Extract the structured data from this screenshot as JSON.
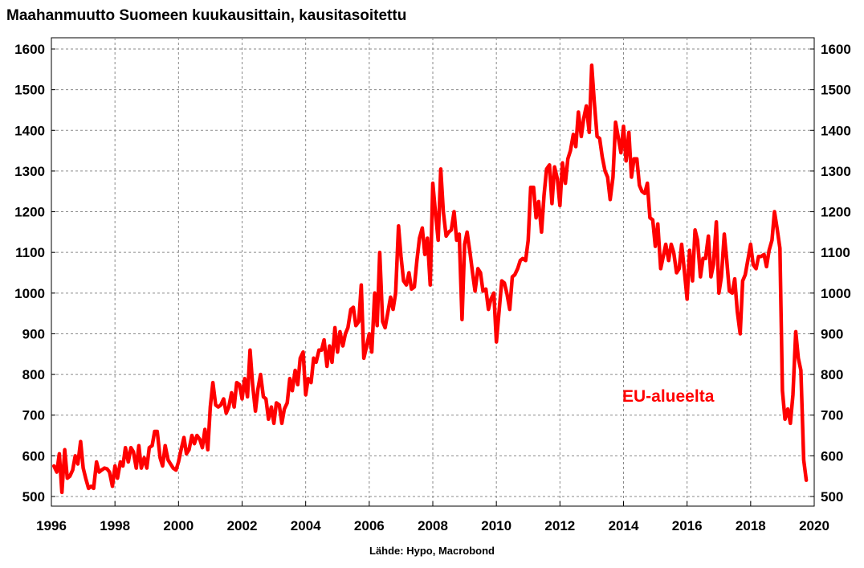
{
  "chart_data": {
    "type": "line",
    "title": "Maahanmuutto Suomeen kuukausittain, kausitasoitettu",
    "source": "Lähde: Hypo, Macrobond",
    "xlabel": "",
    "ylabel": "",
    "xlim": [
      1996,
      2020
    ],
    "ylim": [
      500,
      1600
    ],
    "x_ticks": [
      "1996",
      "1998",
      "2000",
      "2002",
      "2004",
      "2006",
      "2008",
      "2010",
      "2012",
      "2014",
      "2016",
      "2018",
      "2020"
    ],
    "y_ticks": [
      "500",
      "600",
      "700",
      "800",
      "900",
      "1000",
      "1100",
      "1200",
      "1300",
      "1400",
      "1500",
      "1600"
    ],
    "y_axis_both_sides": true,
    "grid": true,
    "series": [
      {
        "name": "EU-alueelta",
        "color": "#ff0000",
        "points": [
          [
            1996.08,
            575
          ],
          [
            1996.17,
            560
          ],
          [
            1996.25,
            605
          ],
          [
            1996.33,
            510
          ],
          [
            1996.42,
            615
          ],
          [
            1996.5,
            545
          ],
          [
            1996.58,
            550
          ],
          [
            1996.67,
            565
          ],
          [
            1996.75,
            600
          ],
          [
            1996.83,
            580
          ],
          [
            1996.92,
            635
          ],
          [
            1997.0,
            570
          ],
          [
            1997.08,
            545
          ],
          [
            1997.17,
            520
          ],
          [
            1997.25,
            525
          ],
          [
            1997.33,
            520
          ],
          [
            1997.42,
            585
          ],
          [
            1997.5,
            560
          ],
          [
            1997.58,
            565
          ],
          [
            1997.67,
            570
          ],
          [
            1997.75,
            568
          ],
          [
            1997.83,
            560
          ],
          [
            1997.92,
            525
          ],
          [
            1998.0,
            575
          ],
          [
            1998.08,
            545
          ],
          [
            1998.17,
            585
          ],
          [
            1998.25,
            575
          ],
          [
            1998.33,
            620
          ],
          [
            1998.42,
            585
          ],
          [
            1998.5,
            620
          ],
          [
            1998.58,
            610
          ],
          [
            1998.67,
            570
          ],
          [
            1998.75,
            625
          ],
          [
            1998.83,
            570
          ],
          [
            1998.92,
            595
          ],
          [
            1999.0,
            570
          ],
          [
            1999.08,
            620
          ],
          [
            1999.17,
            625
          ],
          [
            1999.25,
            660
          ],
          [
            1999.33,
            660
          ],
          [
            1999.42,
            595
          ],
          [
            1999.5,
            575
          ],
          [
            1999.58,
            625
          ],
          [
            1999.67,
            590
          ],
          [
            1999.75,
            580
          ],
          [
            1999.83,
            570
          ],
          [
            1999.92,
            565
          ],
          [
            2000.0,
            585
          ],
          [
            2000.08,
            615
          ],
          [
            2000.17,
            645
          ],
          [
            2000.25,
            605
          ],
          [
            2000.33,
            615
          ],
          [
            2000.42,
            650
          ],
          [
            2000.5,
            630
          ],
          [
            2000.58,
            650
          ],
          [
            2000.67,
            640
          ],
          [
            2000.75,
            620
          ],
          [
            2000.83,
            665
          ],
          [
            2000.92,
            615
          ],
          [
            2001.0,
            720
          ],
          [
            2001.08,
            780
          ],
          [
            2001.17,
            725
          ],
          [
            2001.25,
            720
          ],
          [
            2001.33,
            725
          ],
          [
            2001.42,
            740
          ],
          [
            2001.5,
            705
          ],
          [
            2001.58,
            720
          ],
          [
            2001.67,
            755
          ],
          [
            2001.75,
            720
          ],
          [
            2001.83,
            780
          ],
          [
            2001.92,
            775
          ],
          [
            2002.0,
            740
          ],
          [
            2002.08,
            790
          ],
          [
            2002.17,
            745
          ],
          [
            2002.25,
            860
          ],
          [
            2002.33,
            775
          ],
          [
            2002.42,
            710
          ],
          [
            2002.5,
            765
          ],
          [
            2002.58,
            800
          ],
          [
            2002.67,
            745
          ],
          [
            2002.75,
            740
          ],
          [
            2002.83,
            690
          ],
          [
            2002.92,
            720
          ],
          [
            2003.0,
            680
          ],
          [
            2003.08,
            730
          ],
          [
            2003.17,
            725
          ],
          [
            2003.25,
            680
          ],
          [
            2003.33,
            715
          ],
          [
            2003.42,
            730
          ],
          [
            2003.5,
            790
          ],
          [
            2003.58,
            760
          ],
          [
            2003.67,
            810
          ],
          [
            2003.75,
            775
          ],
          [
            2003.83,
            840
          ],
          [
            2003.92,
            855
          ],
          [
            2004.0,
            750
          ],
          [
            2004.08,
            790
          ],
          [
            2004.17,
            780
          ],
          [
            2004.25,
            840
          ],
          [
            2004.33,
            830
          ],
          [
            2004.42,
            860
          ],
          [
            2004.5,
            860
          ],
          [
            2004.58,
            885
          ],
          [
            2004.67,
            820
          ],
          [
            2004.75,
            870
          ],
          [
            2004.83,
            830
          ],
          [
            2004.92,
            915
          ],
          [
            2005.0,
            855
          ],
          [
            2005.08,
            905
          ],
          [
            2005.17,
            870
          ],
          [
            2005.25,
            900
          ],
          [
            2005.33,
            915
          ],
          [
            2005.42,
            960
          ],
          [
            2005.5,
            965
          ],
          [
            2005.58,
            920
          ],
          [
            2005.67,
            930
          ],
          [
            2005.75,
            1020
          ],
          [
            2005.83,
            840
          ],
          [
            2005.92,
            870
          ],
          [
            2006.0,
            900
          ],
          [
            2006.08,
            855
          ],
          [
            2006.17,
            1000
          ],
          [
            2006.25,
            920
          ],
          [
            2006.33,
            1100
          ],
          [
            2006.42,
            930
          ],
          [
            2006.5,
            915
          ],
          [
            2006.58,
            950
          ],
          [
            2006.67,
            990
          ],
          [
            2006.75,
            960
          ],
          [
            2006.83,
            1000
          ],
          [
            2006.92,
            1165
          ],
          [
            2007.0,
            1090
          ],
          [
            2007.08,
            1030
          ],
          [
            2007.17,
            1020
          ],
          [
            2007.25,
            1050
          ],
          [
            2007.33,
            1010
          ],
          [
            2007.42,
            1015
          ],
          [
            2007.5,
            1080
          ],
          [
            2007.58,
            1135
          ],
          [
            2007.67,
            1160
          ],
          [
            2007.75,
            1095
          ],
          [
            2007.83,
            1135
          ],
          [
            2007.92,
            1020
          ],
          [
            2008.0,
            1270
          ],
          [
            2008.08,
            1200
          ],
          [
            2008.17,
            1130
          ],
          [
            2008.25,
            1305
          ],
          [
            2008.33,
            1200
          ],
          [
            2008.42,
            1140
          ],
          [
            2008.5,
            1150
          ],
          [
            2008.58,
            1155
          ],
          [
            2008.67,
            1200
          ],
          [
            2008.75,
            1130
          ],
          [
            2008.83,
            1145
          ],
          [
            2008.92,
            935
          ],
          [
            2009.0,
            1120
          ],
          [
            2009.08,
            1150
          ],
          [
            2009.17,
            1100
          ],
          [
            2009.25,
            1050
          ],
          [
            2009.33,
            1005
          ],
          [
            2009.42,
            1060
          ],
          [
            2009.5,
            1050
          ],
          [
            2009.58,
            1005
          ],
          [
            2009.67,
            1010
          ],
          [
            2009.75,
            960
          ],
          [
            2009.83,
            985
          ],
          [
            2009.92,
            1000
          ],
          [
            2010.0,
            880
          ],
          [
            2010.08,
            950
          ],
          [
            2010.17,
            1030
          ],
          [
            2010.25,
            1025
          ],
          [
            2010.33,
            1000
          ],
          [
            2010.42,
            960
          ],
          [
            2010.5,
            1040
          ],
          [
            2010.58,
            1045
          ],
          [
            2010.67,
            1060
          ],
          [
            2010.75,
            1080
          ],
          [
            2010.83,
            1085
          ],
          [
            2010.92,
            1080
          ],
          [
            2011.0,
            1130
          ],
          [
            2011.08,
            1260
          ],
          [
            2011.17,
            1260
          ],
          [
            2011.25,
            1185
          ],
          [
            2011.33,
            1225
          ],
          [
            2011.42,
            1150
          ],
          [
            2011.5,
            1240
          ],
          [
            2011.58,
            1305
          ],
          [
            2011.67,
            1315
          ],
          [
            2011.75,
            1220
          ],
          [
            2011.83,
            1310
          ],
          [
            2011.92,
            1280
          ],
          [
            2012.0,
            1215
          ],
          [
            2012.08,
            1320
          ],
          [
            2012.17,
            1270
          ],
          [
            2012.25,
            1330
          ],
          [
            2012.33,
            1350
          ],
          [
            2012.42,
            1390
          ],
          [
            2012.5,
            1360
          ],
          [
            2012.58,
            1445
          ],
          [
            2012.67,
            1385
          ],
          [
            2012.75,
            1430
          ],
          [
            2012.83,
            1460
          ],
          [
            2012.92,
            1395
          ],
          [
            2013.0,
            1560
          ],
          [
            2013.08,
            1470
          ],
          [
            2013.17,
            1385
          ],
          [
            2013.25,
            1380
          ],
          [
            2013.33,
            1335
          ],
          [
            2013.42,
            1300
          ],
          [
            2013.5,
            1285
          ],
          [
            2013.58,
            1230
          ],
          [
            2013.67,
            1285
          ],
          [
            2013.75,
            1420
          ],
          [
            2013.83,
            1385
          ],
          [
            2013.92,
            1345
          ],
          [
            2014.0,
            1410
          ],
          [
            2014.08,
            1325
          ],
          [
            2014.17,
            1395
          ],
          [
            2014.25,
            1285
          ],
          [
            2014.33,
            1330
          ],
          [
            2014.42,
            1330
          ],
          [
            2014.5,
            1265
          ],
          [
            2014.58,
            1250
          ],
          [
            2014.67,
            1245
          ],
          [
            2014.75,
            1270
          ],
          [
            2014.83,
            1185
          ],
          [
            2014.92,
            1180
          ],
          [
            2015.0,
            1115
          ],
          [
            2015.08,
            1170
          ],
          [
            2015.17,
            1060
          ],
          [
            2015.25,
            1090
          ],
          [
            2015.33,
            1120
          ],
          [
            2015.42,
            1080
          ],
          [
            2015.5,
            1120
          ],
          [
            2015.58,
            1100
          ],
          [
            2015.67,
            1050
          ],
          [
            2015.75,
            1060
          ],
          [
            2015.83,
            1120
          ],
          [
            2015.92,
            1050
          ],
          [
            2016.0,
            985
          ],
          [
            2016.08,
            1105
          ],
          [
            2016.17,
            1030
          ],
          [
            2016.25,
            1155
          ],
          [
            2016.33,
            1130
          ],
          [
            2016.42,
            1040
          ],
          [
            2016.5,
            1085
          ],
          [
            2016.58,
            1085
          ],
          [
            2016.67,
            1140
          ],
          [
            2016.75,
            1040
          ],
          [
            2016.83,
            1070
          ],
          [
            2016.92,
            1175
          ],
          [
            2017.0,
            1000
          ],
          [
            2017.08,
            1040
          ],
          [
            2017.17,
            1145
          ],
          [
            2017.25,
            1080
          ],
          [
            2017.33,
            1005
          ],
          [
            2017.42,
            1000
          ],
          [
            2017.5,
            1035
          ],
          [
            2017.58,
            955
          ],
          [
            2017.67,
            900
          ],
          [
            2017.75,
            1030
          ],
          [
            2017.83,
            1045
          ],
          [
            2017.92,
            1085
          ],
          [
            2018.0,
            1120
          ],
          [
            2018.08,
            1070
          ],
          [
            2018.17,
            1060
          ],
          [
            2018.25,
            1090
          ],
          [
            2018.33,
            1090
          ],
          [
            2018.42,
            1095
          ],
          [
            2018.5,
            1065
          ],
          [
            2018.58,
            1105
          ],
          [
            2018.67,
            1130
          ],
          [
            2018.75,
            1200
          ],
          [
            2018.83,
            1160
          ],
          [
            2018.92,
            1110
          ],
          [
            2019.0,
            760
          ],
          [
            2019.08,
            690
          ],
          [
            2019.17,
            715
          ],
          [
            2019.25,
            680
          ],
          [
            2019.33,
            750
          ],
          [
            2019.42,
            905
          ],
          [
            2019.5,
            840
          ],
          [
            2019.58,
            810
          ],
          [
            2019.67,
            590
          ],
          [
            2019.75,
            540
          ]
        ]
      }
    ],
    "annotation": "EU-alueelta"
  }
}
